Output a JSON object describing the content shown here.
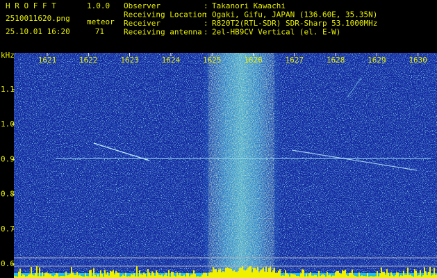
{
  "header": {
    "title": "H R O F F T",
    "version": "1.0.0",
    "file": "2510011620.png",
    "datetime": "25.10.01 16:20",
    "count_label": "meteor",
    "count": "71",
    "separator": ":",
    "info": [
      {
        "label": "Observer",
        "value": "Takanori Kawachi"
      },
      {
        "label": "Receiving Location",
        "value": "Ogaki, Gifu, JAPAN (136.60E, 35.35N)"
      },
      {
        "label": "Receiver",
        "value": "R820T2(RTL-SDR) SDR-Sharp 53.1000MHz"
      },
      {
        "label": "Receiving antenna",
        "value": "2el-HB9CV Vertical (el. E-W)"
      }
    ]
  },
  "axes": {
    "y_unit": "kHz",
    "x_ticks": [
      "1621",
      "1622",
      "1623",
      "1624",
      "1625",
      "1626",
      "1627",
      "1628",
      "1629",
      "1630"
    ],
    "y_ticks": [
      "1.1",
      "1.0",
      "0.9",
      "0.8",
      "0.7",
      "0.6"
    ]
  }
}
